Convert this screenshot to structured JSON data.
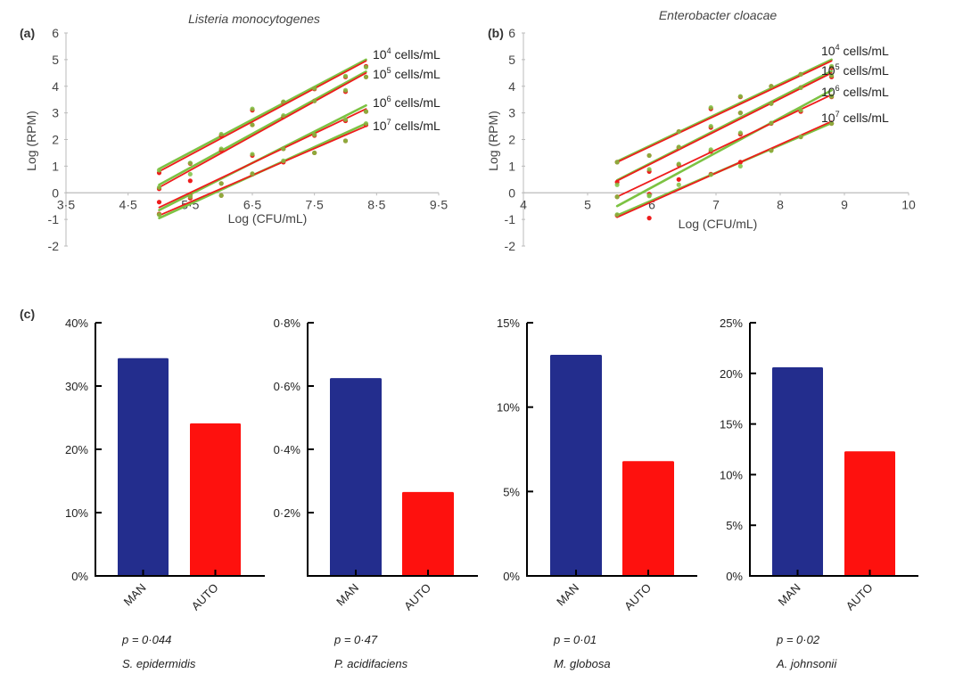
{
  "figure_labels": {
    "a": "(a)",
    "b": "(b)",
    "c": "(c)"
  },
  "chart_data": [
    {
      "id": "a",
      "type": "scatter",
      "title": "Listeria monocytogenes",
      "xlabel": "Log (CFU/mL)",
      "ylabel": "Log (RPM)",
      "xlim": [
        3.5,
        9.5
      ],
      "ylim": [
        -2,
        6
      ],
      "xticks": [
        "3·5",
        "4·5",
        "5·5",
        "6·5",
        "7·5",
        "8·5",
        "9·5"
      ],
      "xtick_values": [
        3.5,
        4.5,
        5.5,
        6.5,
        7.5,
        8.5,
        9.5
      ],
      "yticks": [
        "-2",
        "-1",
        "0",
        "1",
        "2",
        "3",
        "4",
        "5",
        "6"
      ],
      "ytick_values": [
        -2,
        -1,
        0,
        1,
        2,
        3,
        4,
        5,
        6
      ],
      "grid": false,
      "colors": {
        "red": "#ee1c1c",
        "green": "#7cc242",
        "darkgreen": "#5a8f2e"
      },
      "series": [
        {
          "name": "10^4 cells/mL",
          "base": "10",
          "exp": "4",
          "unit": " cells/mL",
          "x": [
            5.0,
            5.5,
            6.0,
            6.5,
            7.0,
            7.5,
            8.0,
            8.33
          ],
          "y_red": [
            0.75,
            1.1,
            2.15,
            3.1,
            3.4,
            3.9,
            4.35,
            4.75
          ],
          "y_green": [
            0.85,
            1.12,
            2.2,
            3.15,
            3.42,
            3.92,
            4.38,
            4.72
          ],
          "fit_red": [
            [
              5.0,
              0.8
            ],
            [
              8.33,
              4.95
            ]
          ],
          "fit_green": [
            [
              5.0,
              0.9
            ],
            [
              8.33,
              5.0
            ]
          ]
        },
        {
          "name": "10^5 cells/mL",
          "base": "10",
          "exp": "5",
          "unit": " cells/mL",
          "x": [
            5.0,
            5.5,
            6.0,
            6.5,
            7.0,
            7.5,
            8.0,
            8.33
          ],
          "y_red": [
            0.15,
            0.45,
            1.6,
            2.55,
            2.85,
            3.45,
            3.8,
            4.35
          ],
          "y_green": [
            0.2,
            0.7,
            1.65,
            2.55,
            2.9,
            3.45,
            3.85,
            4.35
          ],
          "fit_red": [
            [
              5.0,
              0.2
            ],
            [
              8.33,
              4.5
            ]
          ],
          "fit_green": [
            [
              5.0,
              0.3
            ],
            [
              8.33,
              4.55
            ]
          ]
        },
        {
          "name": "10^6 cells/mL",
          "base": "10",
          "exp": "6",
          "unit": " cells/mL",
          "x": [
            5.0,
            5.5,
            6.0,
            6.5,
            7.0,
            7.5,
            8.0,
            8.33
          ],
          "y_red": [
            -0.35,
            -0.1,
            0.35,
            1.4,
            1.65,
            2.15,
            2.7,
            3.05
          ],
          "y_green": [
            -0.8,
            -0.12,
            0.35,
            1.45,
            1.65,
            2.18,
            2.75,
            3.05
          ],
          "fit_red": [
            [
              5.0,
              -0.55
            ],
            [
              8.33,
              3.15
            ]
          ],
          "fit_green": [
            [
              5.0,
              -0.65
            ],
            [
              8.33,
              3.28
            ]
          ]
        },
        {
          "name": "10^7 cells/mL",
          "base": "10",
          "exp": "7",
          "unit": " cells/mL",
          "x": [
            5.0,
            5.5,
            6.0,
            6.5,
            7.0,
            7.5,
            8.0,
            8.33
          ],
          "y_red": [
            -0.8,
            -0.2,
            -0.1,
            0.7,
            1.15,
            1.5,
            1.95,
            2.55
          ],
          "y_green": [
            -0.82,
            -0.15,
            -0.1,
            0.72,
            1.2,
            1.5,
            1.95,
            2.6
          ],
          "fit_red": [
            [
              5.0,
              -0.85
            ],
            [
              8.33,
              2.5
            ]
          ],
          "fit_green": [
            [
              5.0,
              -0.95
            ],
            [
              8.33,
              2.6
            ]
          ]
        }
      ]
    },
    {
      "id": "b",
      "type": "scatter",
      "title": "Enterobacter cloacae",
      "xlabel": "Log (CFU/mL)",
      "ylabel": "Log (RPM)",
      "xlim": [
        4,
        10
      ],
      "ylim": [
        -2,
        6
      ],
      "xticks": [
        "4",
        "5",
        "6",
        "7",
        "8",
        "9",
        "10"
      ],
      "xtick_values": [
        4,
        5,
        6,
        7,
        8,
        9,
        10
      ],
      "yticks": [
        "-2",
        "-1",
        "0",
        "1",
        "2",
        "3",
        "4",
        "5",
        "6"
      ],
      "ytick_values": [
        -2,
        -1,
        0,
        1,
        2,
        3,
        4,
        5,
        6
      ],
      "grid": false,
      "series": [
        {
          "name": "10^4 cells/mL",
          "base": "10",
          "exp": "4",
          "unit": " cells/mL",
          "x": [
            5.46,
            5.96,
            6.42,
            6.92,
            7.38,
            7.86,
            8.32,
            8.8
          ],
          "y_red": [
            1.15,
            1.4,
            2.3,
            3.15,
            3.6,
            4.0,
            4.45,
            4.7
          ],
          "y_green": [
            1.15,
            1.4,
            2.3,
            3.2,
            3.62,
            4.0,
            4.45,
            4.75
          ],
          "fit_red": [
            [
              5.46,
              1.15
            ],
            [
              8.8,
              4.95
            ]
          ],
          "fit_green": [
            [
              5.46,
              1.18
            ],
            [
              8.8,
              5.0
            ]
          ]
        },
        {
          "name": "10^5 cells/mL",
          "base": "10",
          "exp": "5",
          "unit": " cells/mL",
          "x": [
            5.46,
            5.96,
            6.42,
            6.92,
            7.38,
            7.86,
            8.32,
            8.8
          ],
          "y_red": [
            0.4,
            0.8,
            1.7,
            2.45,
            3.0,
            3.35,
            3.95,
            4.35
          ],
          "y_green": [
            0.3,
            0.88,
            1.72,
            2.5,
            3.0,
            3.35,
            3.95,
            4.4
          ],
          "fit_red": [
            [
              5.46,
              0.45
            ],
            [
              8.8,
              4.5
            ]
          ],
          "fit_green": [
            [
              5.46,
              0.47
            ],
            [
              8.8,
              4.57
            ]
          ]
        },
        {
          "name": "10^6 cells/mL",
          "base": "10",
          "exp": "6",
          "unit": " cells/mL",
          "x": [
            5.46,
            5.96,
            6.42,
            6.92,
            7.38,
            7.86,
            8.32,
            8.8
          ],
          "y_red": [
            -0.15,
            -0.05,
            1.05,
            1.55,
            2.2,
            2.6,
            3.05,
            3.6
          ],
          "y_green": [
            -0.15,
            -0.1,
            1.08,
            1.62,
            2.25,
            2.62,
            3.1,
            3.62
          ],
          "fit_red": [
            [
              5.46,
              -0.15
            ],
            [
              8.8,
              3.68
            ]
          ],
          "fit_green": [
            [
              5.46,
              -0.5
            ],
            [
              8.8,
              3.85
            ]
          ]
        },
        {
          "name": "10^7 cells/mL",
          "base": "10",
          "exp": "7",
          "unit": " cells/mL",
          "x": [
            5.46,
            5.96,
            6.42,
            6.92,
            7.38,
            7.86,
            8.32,
            8.8
          ],
          "y_red": [
            -0.85,
            -0.95,
            0.5,
            0.7,
            1.15,
            1.6,
            2.1,
            2.6
          ],
          "y_green": [
            -0.82,
            -0.12,
            0.3,
            0.68,
            1.0,
            1.58,
            2.1,
            2.6
          ],
          "fit_red": [
            [
              5.46,
              -0.92
            ],
            [
              8.8,
              2.68
            ]
          ],
          "fit_green": [
            [
              5.46,
              -0.85
            ],
            [
              8.8,
              2.62
            ]
          ]
        }
      ]
    },
    {
      "id": "c1",
      "type": "bar",
      "categories": [
        "MAN",
        "AUTO"
      ],
      "values": [
        34.4,
        24.1
      ],
      "unit": "%",
      "ylim": [
        0,
        40
      ],
      "yticks": [
        "0%",
        "10%",
        "20%",
        "30%",
        "40%"
      ],
      "ytick_values": [
        0,
        10,
        20,
        30,
        40
      ],
      "p_value": "p = 0·044",
      "species": "S. epidermidis",
      "colors": [
        "#232d8d",
        "#fe110e"
      ]
    },
    {
      "id": "c2",
      "type": "bar",
      "categories": [
        "MAN",
        "AUTO"
      ],
      "values": [
        0.625,
        0.265
      ],
      "unit": "%",
      "ylim": [
        0,
        0.8
      ],
      "yticks": [
        "0·2%",
        "0·4%",
        "0·6%",
        "0·8%"
      ],
      "ytick_values": [
        0.2,
        0.4,
        0.6,
        0.8
      ],
      "p_value": "p = 0·47",
      "species": "P. acidifaciens",
      "colors": [
        "#232d8d",
        "#fe110e"
      ]
    },
    {
      "id": "c3",
      "type": "bar",
      "categories": [
        "MAN",
        "AUTO"
      ],
      "values": [
        13.1,
        6.8
      ],
      "unit": "%",
      "ylim": [
        0,
        15
      ],
      "yticks": [
        "0%",
        "5%",
        "10%",
        "15%"
      ],
      "ytick_values": [
        0,
        5,
        10,
        15
      ],
      "p_value": "p = 0·01",
      "species": "M. globosa",
      "colors": [
        "#232d8d",
        "#fe110e"
      ]
    },
    {
      "id": "c4",
      "type": "bar",
      "categories": [
        "MAN",
        "AUTO"
      ],
      "values": [
        20.6,
        12.3
      ],
      "unit": "%",
      "ylim": [
        0,
        25
      ],
      "yticks": [
        "0%",
        "5%",
        "10%",
        "15%",
        "20%",
        "25%"
      ],
      "ytick_values": [
        0,
        5,
        10,
        15,
        20,
        25
      ],
      "p_value": "p = 0·02",
      "species": "A. johnsonii",
      "colors": [
        "#232d8d",
        "#fe110e"
      ]
    }
  ]
}
